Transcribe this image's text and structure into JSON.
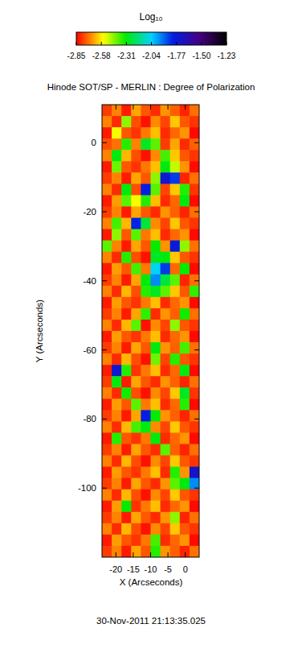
{
  "chart_data": {
    "type": "heatmap",
    "title": "Hinode SOT/SP - MERLIN : Degree of Polarization",
    "subtitle": "30-Nov-2011 21:13:35.025",
    "x_label": "X (Arcseconds)",
    "y_label": "Y (Arcseconds)",
    "xlim": [
      -24,
      4
    ],
    "ylim": [
      -120,
      11
    ],
    "xticks": [
      -20,
      -15,
      -10,
      -5,
      0
    ],
    "yticks": [
      0,
      -20,
      -40,
      -60,
      -80,
      -100
    ],
    "colorbar": {
      "label": "Log₁₀",
      "range": [
        -2.85,
        -1.23
      ],
      "ticks": [
        -2.85,
        -2.58,
        -2.31,
        -2.04,
        -1.77,
        {
          "value": -1.5,
          "label": "-1.50"
        },
        -1.23
      ]
    },
    "cells": [
      [
        -2.78,
        -2.7,
        -2.82,
        -2.66,
        -2.75,
        -2.8,
        -2.68,
        -2.74,
        -2.81,
        -2.72
      ],
      [
        -2.7,
        -2.8,
        -2.45,
        -2.76,
        -2.83,
        -2.69,
        -2.77,
        -2.62,
        -2.75,
        -2.79
      ],
      [
        -2.82,
        -2.55,
        -2.75,
        -2.79,
        -2.71,
        -2.63,
        -2.8,
        -2.73,
        -2.68,
        -2.84
      ],
      [
        -2.76,
        -2.72,
        -2.35,
        -2.7,
        -2.28,
        -2.4,
        -2.78,
        -2.66,
        -2.8,
        -2.74
      ],
      [
        -2.7,
        -2.3,
        -2.64,
        -2.76,
        -2.83,
        -2.69,
        -2.38,
        -2.62,
        -2.75,
        -2.79
      ],
      [
        -2.82,
        -2.42,
        -2.75,
        -2.79,
        -2.71,
        -2.63,
        -2.3,
        -2.5,
        -2.68,
        -2.84
      ],
      [
        -2.78,
        -2.7,
        -2.82,
        -2.66,
        -2.75,
        -2.45,
        -1.75,
        -1.85,
        -2.81,
        -2.72
      ],
      [
        -2.7,
        -2.8,
        -2.3,
        -2.76,
        -1.8,
        -2.4,
        -2.77,
        -2.62,
        -2.35,
        -2.79
      ],
      [
        -2.82,
        -2.67,
        -2.4,
        -2.55,
        -2.35,
        -2.63,
        -2.8,
        -2.73,
        -2.3,
        -2.84
      ],
      [
        -2.78,
        -2.7,
        -2.82,
        -2.66,
        -2.75,
        -2.8,
        -2.68,
        -2.74,
        -2.81,
        -2.72
      ],
      [
        -2.7,
        -2.38,
        -2.64,
        -1.82,
        -2.25,
        -2.69,
        -2.77,
        -2.62,
        -2.75,
        -2.79
      ],
      [
        -2.82,
        -2.45,
        -2.75,
        -2.4,
        -2.71,
        -2.63,
        -2.8,
        -2.73,
        -2.68,
        -2.84
      ],
      [
        -2.4,
        -2.7,
        -2.82,
        -2.66,
        -2.75,
        -2.32,
        -2.68,
        -1.78,
        -2.45,
        -2.72
      ],
      [
        -2.7,
        -2.8,
        -2.35,
        -2.76,
        -2.83,
        -2.28,
        -2.3,
        -2.62,
        -2.75,
        -2.79
      ],
      [
        -2.82,
        -2.67,
        -2.75,
        -2.38,
        -2.71,
        -2.05,
        -1.85,
        -2.73,
        -2.32,
        -2.84
      ],
      [
        -2.78,
        -2.7,
        -2.82,
        -2.66,
        -2.3,
        -1.95,
        -2.25,
        -2.4,
        -2.81,
        -2.72
      ],
      [
        -2.7,
        -2.8,
        -2.64,
        -2.76,
        -2.35,
        -2.28,
        -2.4,
        -2.62,
        -2.75,
        -2.36
      ],
      [
        -2.82,
        -2.67,
        -2.75,
        -2.79,
        -2.71,
        -2.63,
        -2.8,
        -2.73,
        -2.68,
        -2.84
      ],
      [
        -2.78,
        -2.7,
        -2.82,
        -2.66,
        -2.36,
        -2.8,
        -2.68,
        -2.74,
        -2.33,
        -2.72
      ],
      [
        -2.7,
        -2.8,
        -2.64,
        -2.4,
        -2.83,
        -2.69,
        -2.77,
        -2.45,
        -2.75,
        -2.79
      ],
      [
        -2.82,
        -2.67,
        -2.75,
        -2.79,
        -2.71,
        -2.63,
        -2.8,
        -2.73,
        -2.68,
        -2.84
      ],
      [
        -2.78,
        -2.7,
        -2.82,
        -2.66,
        -2.75,
        -2.3,
        -2.68,
        -2.74,
        -2.38,
        -2.72
      ],
      [
        -2.7,
        -2.8,
        -2.64,
        -2.76,
        -2.83,
        -2.42,
        -2.77,
        -2.35,
        -2.75,
        -2.79
      ],
      [
        -2.82,
        -1.75,
        -2.35,
        -2.79,
        -2.71,
        -2.63,
        -2.8,
        -2.73,
        -2.3,
        -2.84
      ],
      [
        -2.78,
        -2.3,
        -2.82,
        -2.66,
        -2.75,
        -2.8,
        -2.68,
        -2.74,
        -2.81,
        -2.72
      ],
      [
        -2.7,
        -2.8,
        -2.33,
        -2.76,
        -2.83,
        -2.69,
        -2.77,
        -2.62,
        -2.28,
        -2.79
      ],
      [
        -2.82,
        -2.67,
        -2.75,
        -2.4,
        -2.71,
        -2.63,
        -2.8,
        -2.73,
        -2.35,
        -2.84
      ],
      [
        -2.78,
        -2.7,
        -2.82,
        -2.66,
        -1.8,
        -2.32,
        -2.68,
        -2.74,
        -2.81,
        -2.72
      ],
      [
        -2.7,
        -2.8,
        -2.64,
        -2.38,
        -2.3,
        -2.69,
        -2.77,
        -2.62,
        -2.75,
        -2.79
      ],
      [
        -2.82,
        -2.35,
        -2.75,
        -2.79,
        -2.71,
        -2.3,
        -2.8,
        -2.73,
        -2.68,
        -2.84
      ],
      [
        -2.78,
        -2.7,
        -2.82,
        -2.66,
        -2.75,
        -2.8,
        -2.4,
        -2.74,
        -2.81,
        -2.72
      ],
      [
        -2.7,
        -2.8,
        -2.64,
        -2.76,
        -2.83,
        -2.69,
        -2.77,
        -2.62,
        -2.75,
        -2.79
      ],
      [
        -2.82,
        -2.67,
        -2.75,
        -2.79,
        -2.71,
        -2.63,
        -2.8,
        -2.35,
        -2.68,
        -1.72
      ],
      [
        -2.78,
        -2.7,
        -2.82,
        -2.66,
        -2.75,
        -2.8,
        -2.68,
        -2.4,
        -2.3,
        -1.95
      ],
      [
        -2.7,
        -2.8,
        -2.64,
        -2.76,
        -2.83,
        -2.69,
        -2.77,
        -2.62,
        -2.75,
        -2.79
      ],
      [
        -2.82,
        -2.67,
        -2.32,
        -2.79,
        -2.71,
        -2.63,
        -2.8,
        -2.73,
        -2.68,
        -2.84
      ],
      [
        -2.78,
        -2.7,
        -2.82,
        -2.66,
        -2.75,
        -2.8,
        -2.68,
        -2.45,
        -2.81,
        -2.72
      ],
      [
        -2.7,
        -2.8,
        -2.64,
        -2.76,
        -2.83,
        -2.69,
        -2.77,
        -2.62,
        -2.75,
        -2.79
      ],
      [
        -2.82,
        -2.67,
        -2.75,
        -2.79,
        -2.71,
        -2.38,
        -2.8,
        -2.73,
        -2.68,
        -2.84
      ],
      [
        -2.78,
        -2.7,
        -2.82,
        -2.66,
        -2.75,
        -2.35,
        -2.68,
        -2.74,
        -2.81,
        -2.72
      ]
    ]
  }
}
